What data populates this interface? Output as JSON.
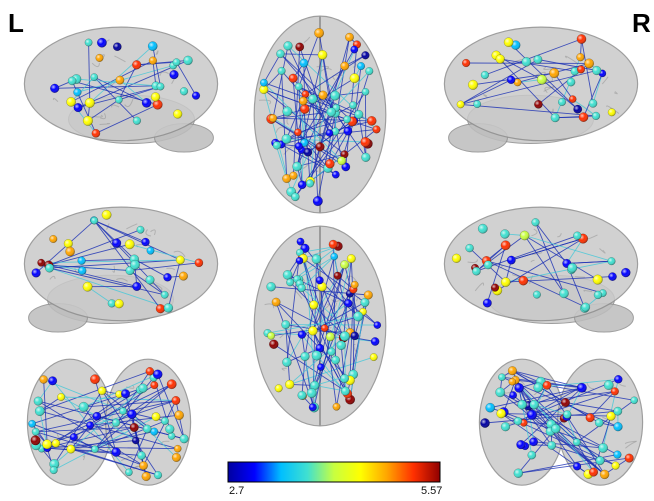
{
  "labels": {
    "left": "L",
    "right": "R"
  },
  "colorbar": {
    "min": "2.7",
    "max": "5.57",
    "stops": [
      "#0000a0",
      "#0000ff",
      "#00bfff",
      "#40e0d0",
      "#c8ff40",
      "#ffff00",
      "#ffa500",
      "#ff3000",
      "#900000"
    ]
  },
  "colors": {
    "brain_fill": "#c9c9c9",
    "brain_edge": "#8e8e8e",
    "sulcus": "#9a9a9a",
    "edge_strong": "#1a2fb4",
    "edge_weak": "#45c8d8"
  },
  "views": [
    {
      "id": "left-lateral",
      "kind": "sagittal",
      "flip": false
    },
    {
      "id": "axial-top",
      "kind": "axial"
    },
    {
      "id": "right-lateral",
      "kind": "sagittal",
      "flip": true
    },
    {
      "id": "left-medial",
      "kind": "sagittal",
      "flip": true
    },
    {
      "id": "axial-bottom",
      "kind": "axial"
    },
    {
      "id": "right-medial",
      "kind": "sagittal",
      "flip": false
    },
    {
      "id": "coronal-back",
      "kind": "coronal"
    },
    {
      "id": "coronal-front",
      "kind": "coronal"
    }
  ]
}
